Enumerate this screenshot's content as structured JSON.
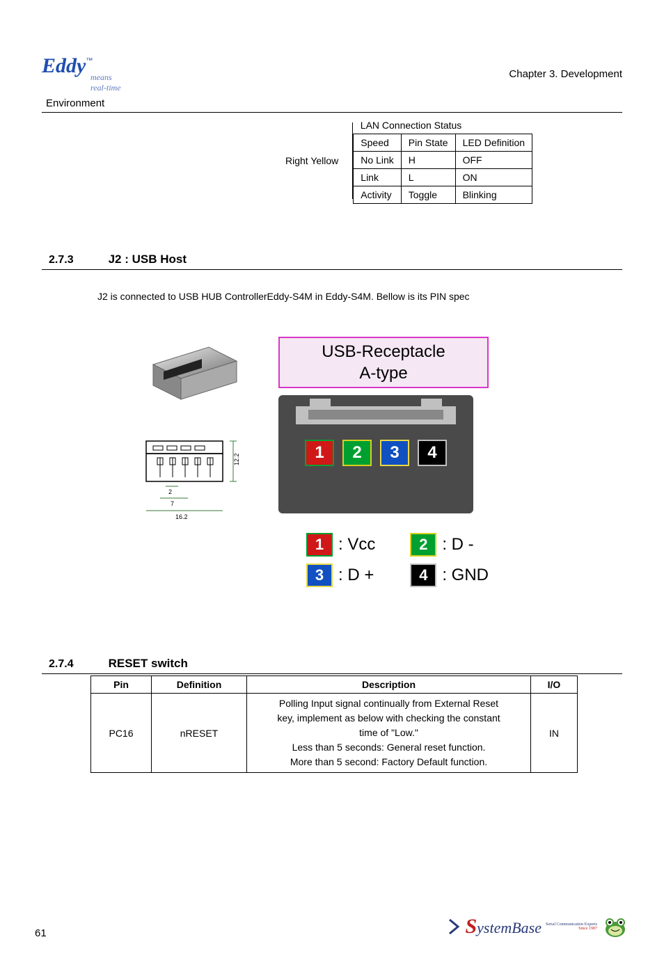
{
  "header": {
    "logo_main": "Eddy",
    "logo_tag1": "means",
    "logo_tag2": "real-time",
    "tm": "™",
    "environment": "Environment",
    "chapter": "Chapter 3. Development"
  },
  "lan_table": {
    "side_label": "Right Yellow",
    "caption": "LAN Connection Status",
    "headers": [
      "Speed",
      "Pin State",
      "LED Definition"
    ],
    "rows": [
      [
        "No Link",
        "H",
        "OFF"
      ],
      [
        "Link",
        "L",
        "ON"
      ],
      [
        "Activity",
        "Toggle",
        "Blinking"
      ]
    ]
  },
  "section_273": {
    "num": "2.7.3",
    "title": "J2 : USB Host",
    "text": "J2 is connected to USB HUB ControllerEddy-S4M in Eddy-S4M. Bellow is its PIN spec"
  },
  "usb_diagram": {
    "label_line1": "USB-Receptacle",
    "label_line2": "A-type",
    "pins": [
      {
        "num": "1",
        "bg": "#d01818",
        "border": "#00a030",
        "label": ": Vcc"
      },
      {
        "num": "2",
        "bg": "#00a030",
        "border": "#d8d020",
        "label": ": D -"
      },
      {
        "num": "3",
        "bg": "#1050c0",
        "border": "#e8d848",
        "label": ": D +"
      },
      {
        "num": "4",
        "bg": "#000000",
        "border": "#c0c0c0",
        "label": ": GND"
      }
    ],
    "dim_h": "12.2",
    "dim_w1": "2",
    "dim_w2": "7",
    "dim_w3": "16.2"
  },
  "section_274": {
    "num": "2.7.4",
    "title": "RESET switch",
    "headers": [
      "Pin",
      "Definition",
      "Description",
      "I/O"
    ],
    "row": {
      "pin": "PC16",
      "def": "nRESET",
      "desc_lines": [
        "Polling Input signal continually from External Reset",
        "key, implement as below with checking the constant",
        "time of \"Low.\"",
        "Less than 5 seconds: General reset function.",
        "More than 5 second: Factory Default function."
      ],
      "io": "IN"
    }
  },
  "footer": {
    "page": "61",
    "brand_s": "S",
    "brand_rest": "ystemBase",
    "brand_tag1": "Serial Communication Experts",
    "brand_tag2": "Since 1987"
  },
  "colors": {
    "brand_blue": "#1f4db0",
    "pin_red": "#d01818",
    "pin_green": "#00a030",
    "pin_blue": "#1050c0",
    "pin_black": "#000000"
  }
}
